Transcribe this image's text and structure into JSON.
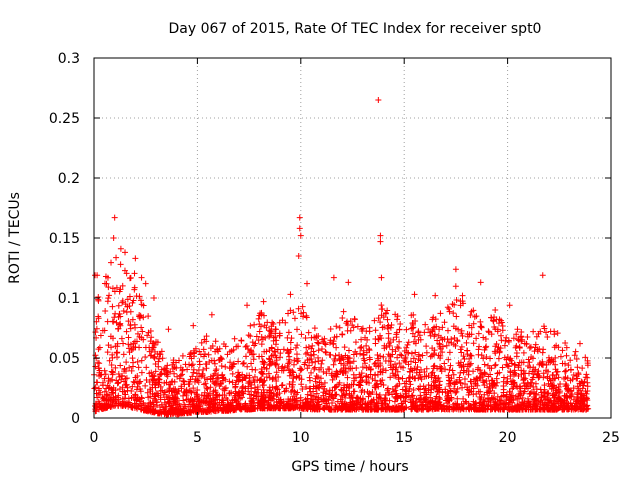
{
  "chart_data": {
    "type": "scatter",
    "title": "Day 067 of 2015, Rate Of TEC Index for receiver spt0",
    "xlabel": "GPS time / hours",
    "ylabel": "ROTI / TECUs",
    "xlim": [
      0,
      25
    ],
    "ylim": [
      0,
      0.3
    ],
    "xticks": [
      0,
      5,
      10,
      15,
      20,
      25
    ],
    "yticks": [
      0,
      0.05,
      0.1,
      0.15,
      0.2,
      0.25,
      0.3
    ],
    "xtick_labels": [
      "0",
      "5",
      "10",
      "15",
      "20",
      "25"
    ],
    "ytick_labels": [
      "0",
      "0.05",
      "0.1",
      "0.15",
      "0.2",
      "0.25",
      "0.3"
    ],
    "grid": true,
    "marker": "plus",
    "series": [
      {
        "name": "ROTI",
        "color": "#ff0000",
        "notable_points": [
          {
            "x": 13.75,
            "y": 0.265
          },
          {
            "x": 1.0,
            "y": 0.167
          },
          {
            "x": 9.95,
            "y": 0.167
          },
          {
            "x": 9.95,
            "y": 0.158
          },
          {
            "x": 10.0,
            "y": 0.152
          },
          {
            "x": 13.85,
            "y": 0.152
          },
          {
            "x": 13.85,
            "y": 0.147
          },
          {
            "x": 0.95,
            "y": 0.15
          },
          {
            "x": 1.3,
            "y": 0.141
          },
          {
            "x": 9.9,
            "y": 0.135
          },
          {
            "x": 1.5,
            "y": 0.138
          },
          {
            "x": 2.0,
            "y": 0.133
          },
          {
            "x": 21.7,
            "y": 0.119
          },
          {
            "x": 0.05,
            "y": 0.119
          },
          {
            "x": 0.15,
            "y": 0.119
          },
          {
            "x": 2.3,
            "y": 0.117
          },
          {
            "x": 11.6,
            "y": 0.117
          },
          {
            "x": 13.9,
            "y": 0.117
          },
          {
            "x": 17.5,
            "y": 0.124
          },
          {
            "x": 12.3,
            "y": 0.113
          },
          {
            "x": 18.7,
            "y": 0.113
          },
          {
            "x": 2.5,
            "y": 0.112
          },
          {
            "x": 10.3,
            "y": 0.112
          },
          {
            "x": 2.9,
            "y": 0.1
          },
          {
            "x": 9.5,
            "y": 0.103
          },
          {
            "x": 8.2,
            "y": 0.097
          },
          {
            "x": 15.5,
            "y": 0.103
          },
          {
            "x": 16.5,
            "y": 0.102
          },
          {
            "x": 5.7,
            "y": 0.086
          },
          {
            "x": 7.4,
            "y": 0.094
          },
          {
            "x": 4.8,
            "y": 0.077
          },
          {
            "x": 3.6,
            "y": 0.074
          },
          {
            "x": 6.8,
            "y": 0.066
          },
          {
            "x": 23.5,
            "y": 0.062
          },
          {
            "x": 20.1,
            "y": 0.094
          },
          {
            "x": 19.4,
            "y": 0.09
          }
        ],
        "activity_envelope": {
          "x": [
            0,
            0.5,
            1,
            1.5,
            2,
            2.5,
            3,
            3.5,
            4,
            4.5,
            5,
            5.5,
            6,
            6.5,
            7,
            7.5,
            8,
            8.5,
            9,
            9.5,
            10,
            10.5,
            11,
            11.5,
            12,
            12.5,
            13,
            13.5,
            14,
            14.5,
            15,
            15.5,
            16,
            16.5,
            17,
            17.5,
            18,
            18.5,
            19,
            19.5,
            20,
            20.5,
            21,
            21.5,
            22,
            22.5,
            23,
            23.5,
            23.9
          ],
          "upper": [
            0.11,
            0.12,
            0.135,
            0.13,
            0.12,
            0.09,
            0.07,
            0.045,
            0.05,
            0.055,
            0.06,
            0.07,
            0.065,
            0.06,
            0.06,
            0.08,
            0.09,
            0.08,
            0.08,
            0.09,
            0.1,
            0.08,
            0.07,
            0.08,
            0.09,
            0.085,
            0.075,
            0.08,
            0.1,
            0.09,
            0.08,
            0.09,
            0.09,
            0.085,
            0.09,
            0.11,
            0.1,
            0.09,
            0.08,
            0.09,
            0.07,
            0.075,
            0.07,
            0.08,
            0.075,
            0.07,
            0.06,
            0.055,
            0.05
          ],
          "lower": [
            0.005,
            0.008,
            0.01,
            0.01,
            0.008,
            0.006,
            0.004,
            0.003,
            0.003,
            0.004,
            0.005,
            0.005,
            0.006,
            0.006,
            0.007,
            0.007,
            0.008,
            0.008,
            0.008,
            0.008,
            0.008,
            0.007,
            0.007,
            0.007,
            0.007,
            0.007,
            0.007,
            0.007,
            0.007,
            0.007,
            0.007,
            0.007,
            0.007,
            0.007,
            0.007,
            0.007,
            0.007,
            0.007,
            0.007,
            0.007,
            0.007,
            0.007,
            0.007,
            0.007,
            0.007,
            0.007,
            0.007,
            0.007,
            0.007
          ]
        }
      }
    ]
  }
}
